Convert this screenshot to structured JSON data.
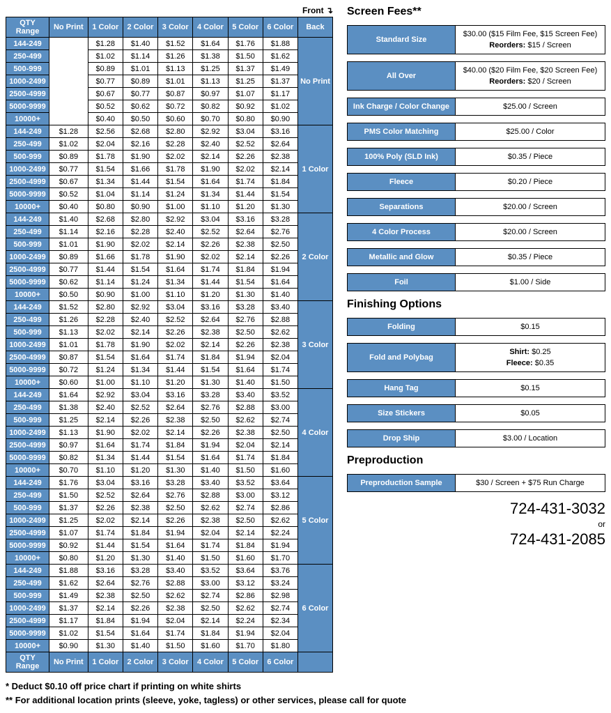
{
  "colors": {
    "header_bg": "#5b8fc2",
    "header_fg": "#ffffff",
    "border": "#000000",
    "background": "#ffffff",
    "text": "#000000"
  },
  "labels": {
    "front": "Front",
    "back": "Back"
  },
  "table": {
    "columns": [
      "QTY Range",
      "No Print",
      "1 Color",
      "2 Color",
      "3 Color",
      "4 Color",
      "5 Color",
      "6 Color"
    ],
    "qty_ranges": [
      "144-249",
      "250-499",
      "500-999",
      "1000-2499",
      "2500-4999",
      "5000-9999",
      "10000+"
    ],
    "back_labels": [
      "No Print",
      "1 Color",
      "2 Color",
      "3 Color",
      "4 Color",
      "5 Color",
      "6 Color"
    ],
    "groups": [
      {
        "back": "No Print",
        "rows": [
          [
            "",
            "$1.28",
            "$1.40",
            "$1.52",
            "$1.64",
            "$1.76",
            "$1.88"
          ],
          [
            "",
            "$1.02",
            "$1.14",
            "$1.26",
            "$1.38",
            "$1.50",
            "$1.62"
          ],
          [
            "",
            "$0.89",
            "$1.01",
            "$1.13",
            "$1.25",
            "$1.37",
            "$1.49"
          ],
          [
            "",
            "$0.77",
            "$0.89",
            "$1.01",
            "$1.13",
            "$1.25",
            "$1.37"
          ],
          [
            "",
            "$0.67",
            "$0.77",
            "$0.87",
            "$0.97",
            "$1.07",
            "$1.17"
          ],
          [
            "",
            "$0.52",
            "$0.62",
            "$0.72",
            "$0.82",
            "$0.92",
            "$1.02"
          ],
          [
            "",
            "$0.40",
            "$0.50",
            "$0.60",
            "$0.70",
            "$0.80",
            "$0.90"
          ]
        ],
        "noprint_rowspan": true
      },
      {
        "back": "1 Color",
        "rows": [
          [
            "$1.28",
            "$2.56",
            "$2.68",
            "$2.80",
            "$2.92",
            "$3.04",
            "$3.16"
          ],
          [
            "$1.02",
            "$2.04",
            "$2.16",
            "$2.28",
            "$2.40",
            "$2.52",
            "$2.64"
          ],
          [
            "$0.89",
            "$1.78",
            "$1.90",
            "$2.02",
            "$2.14",
            "$2.26",
            "$2.38"
          ],
          [
            "$0.77",
            "$1.54",
            "$1.66",
            "$1.78",
            "$1.90",
            "$2.02",
            "$2.14"
          ],
          [
            "$0.67",
            "$1.34",
            "$1.44",
            "$1.54",
            "$1.64",
            "$1.74",
            "$1.84"
          ],
          [
            "$0.52",
            "$1.04",
            "$1.14",
            "$1.24",
            "$1.34",
            "$1.44",
            "$1.54"
          ],
          [
            "$0.40",
            "$0.80",
            "$0.90",
            "$1.00",
            "$1.10",
            "$1.20",
            "$1.30"
          ]
        ]
      },
      {
        "back": "2 Color",
        "rows": [
          [
            "$1.40",
            "$2.68",
            "$2.80",
            "$2.92",
            "$3.04",
            "$3.16",
            "$3.28"
          ],
          [
            "$1.14",
            "$2.16",
            "$2.28",
            "$2.40",
            "$2.52",
            "$2.64",
            "$2.76"
          ],
          [
            "$1.01",
            "$1.90",
            "$2.02",
            "$2.14",
            "$2.26",
            "$2.38",
            "$2.50"
          ],
          [
            "$0.89",
            "$1.66",
            "$1.78",
            "$1.90",
            "$2.02",
            "$2.14",
            "$2.26"
          ],
          [
            "$0.77",
            "$1.44",
            "$1.54",
            "$1.64",
            "$1.74",
            "$1.84",
            "$1.94"
          ],
          [
            "$0.62",
            "$1.14",
            "$1.24",
            "$1.34",
            "$1.44",
            "$1.54",
            "$1.64"
          ],
          [
            "$0.50",
            "$0.90",
            "$1.00",
            "$1.10",
            "$1.20",
            "$1.30",
            "$1.40"
          ]
        ]
      },
      {
        "back": "3 Color",
        "rows": [
          [
            "$1.52",
            "$2.80",
            "$2.92",
            "$3.04",
            "$3.16",
            "$3.28",
            "$3.40"
          ],
          [
            "$1.26",
            "$2.28",
            "$2.40",
            "$2.52",
            "$2.64",
            "$2.76",
            "$2.88"
          ],
          [
            "$1.13",
            "$2.02",
            "$2.14",
            "$2.26",
            "$2.38",
            "$2.50",
            "$2.62"
          ],
          [
            "$1.01",
            "$1.78",
            "$1.90",
            "$2.02",
            "$2.14",
            "$2.26",
            "$2.38"
          ],
          [
            "$0.87",
            "$1.54",
            "$1.64",
            "$1.74",
            "$1.84",
            "$1.94",
            "$2.04"
          ],
          [
            "$0.72",
            "$1.24",
            "$1.34",
            "$1.44",
            "$1.54",
            "$1.64",
            "$1.74"
          ],
          [
            "$0.60",
            "$1.00",
            "$1.10",
            "$1.20",
            "$1.30",
            "$1.40",
            "$1.50"
          ]
        ]
      },
      {
        "back": "4 Color",
        "rows": [
          [
            "$1.64",
            "$2.92",
            "$3.04",
            "$3.16",
            "$3.28",
            "$3.40",
            "$3.52"
          ],
          [
            "$1.38",
            "$2.40",
            "$2.52",
            "$2.64",
            "$2.76",
            "$2.88",
            "$3.00"
          ],
          [
            "$1.25",
            "$2.14",
            "$2.26",
            "$2.38",
            "$2.50",
            "$2.62",
            "$2.74"
          ],
          [
            "$1.13",
            "$1.90",
            "$2.02",
            "$2.14",
            "$2.26",
            "$2.38",
            "$2.50"
          ],
          [
            "$0.97",
            "$1.64",
            "$1.74",
            "$1.84",
            "$1.94",
            "$2.04",
            "$2.14"
          ],
          [
            "$0.82",
            "$1.34",
            "$1.44",
            "$1.54",
            "$1.64",
            "$1.74",
            "$1.84"
          ],
          [
            "$0.70",
            "$1.10",
            "$1.20",
            "$1.30",
            "$1.40",
            "$1.50",
            "$1.60"
          ]
        ]
      },
      {
        "back": "5 Color",
        "rows": [
          [
            "$1.76",
            "$3.04",
            "$3.16",
            "$3.28",
            "$3.40",
            "$3.52",
            "$3.64"
          ],
          [
            "$1.50",
            "$2.52",
            "$2.64",
            "$2.76",
            "$2.88",
            "$3.00",
            "$3.12"
          ],
          [
            "$1.37",
            "$2.26",
            "$2.38",
            "$2.50",
            "$2.62",
            "$2.74",
            "$2.86"
          ],
          [
            "$1.25",
            "$2.02",
            "$2.14",
            "$2.26",
            "$2.38",
            "$2.50",
            "$2.62"
          ],
          [
            "$1.07",
            "$1.74",
            "$1.84",
            "$1.94",
            "$2.04",
            "$2.14",
            "$2.24"
          ],
          [
            "$0.92",
            "$1.44",
            "$1.54",
            "$1.64",
            "$1.74",
            "$1.84",
            "$1.94"
          ],
          [
            "$0.80",
            "$1.20",
            "$1.30",
            "$1.40",
            "$1.50",
            "$1.60",
            "$1.70"
          ]
        ]
      },
      {
        "back": "6 Color",
        "rows": [
          [
            "$1.88",
            "$3.16",
            "$3.28",
            "$3.40",
            "$3.52",
            "$3.64",
            "$3.76"
          ],
          [
            "$1.62",
            "$2.64",
            "$2.76",
            "$2.88",
            "$3.00",
            "$3.12",
            "$3.24"
          ],
          [
            "$1.49",
            "$2.38",
            "$2.50",
            "$2.62",
            "$2.74",
            "$2.86",
            "$2.98"
          ],
          [
            "$1.37",
            "$2.14",
            "$2.26",
            "$2.38",
            "$2.50",
            "$2.62",
            "$2.74"
          ],
          [
            "$1.17",
            "$1.84",
            "$1.94",
            "$2.04",
            "$2.14",
            "$2.24",
            "$2.34"
          ],
          [
            "$1.02",
            "$1.54",
            "$1.64",
            "$1.74",
            "$1.84",
            "$1.94",
            "$2.04"
          ],
          [
            "$0.90",
            "$1.30",
            "$1.40",
            "$1.50",
            "$1.60",
            "$1.70",
            "$1.80"
          ]
        ]
      }
    ]
  },
  "footnotes": [
    "* Deduct $0.10 off price chart if printing on white shirts",
    "** For additional location prints (sleeve, yoke, tagless) or other services, please call for quote"
  ],
  "sections": {
    "screen_fees": {
      "title": "Screen Fees**",
      "rows": [
        {
          "label": "Standard Size",
          "lines": [
            {
              "text": "$30.00 ($15 Film Fee, $15 Screen Fee)"
            },
            {
              "bold": "Reorders:",
              "text": " $15 / Screen"
            }
          ]
        },
        {
          "label": "All Over",
          "lines": [
            {
              "text": "$40.00 ($20 Film Fee, $20 Screen Fee)"
            },
            {
              "bold": "Reorders:",
              "text": " $20 / Screen"
            }
          ]
        },
        {
          "label": "Ink Charge / Color Change",
          "lines": [
            {
              "text": "$25.00 / Screen"
            }
          ]
        },
        {
          "label": "PMS Color Matching",
          "lines": [
            {
              "text": "$25.00 / Color"
            }
          ]
        },
        {
          "label": "100% Poly (SLD Ink)",
          "lines": [
            {
              "text": "$0.35 / Piece"
            }
          ]
        },
        {
          "label": "Fleece",
          "lines": [
            {
              "text": "$0.20 / Piece"
            }
          ]
        },
        {
          "label": "Separations",
          "lines": [
            {
              "text": "$20.00 / Screen"
            }
          ]
        },
        {
          "label": "4 Color Process",
          "lines": [
            {
              "text": "$20.00 / Screen"
            }
          ]
        },
        {
          "label": "Metallic and Glow",
          "lines": [
            {
              "text": "$0.35 / Piece"
            }
          ]
        },
        {
          "label": "Foil",
          "lines": [
            {
              "text": "$1.00 / Side"
            }
          ]
        }
      ]
    },
    "finishing": {
      "title": "Finishing Options",
      "rows": [
        {
          "label": "Folding",
          "lines": [
            {
              "text": "$0.15"
            }
          ]
        },
        {
          "label": "Fold and Polybag",
          "lines": [
            {
              "bold": "Shirt:",
              "text": " $0.25"
            },
            {
              "bold": "Fleece:",
              "text": " $0.35"
            }
          ]
        },
        {
          "label": "Hang Tag",
          "lines": [
            {
              "text": "$0.15"
            }
          ]
        },
        {
          "label": "Size Stickers",
          "lines": [
            {
              "text": "$0.05"
            }
          ]
        },
        {
          "label": "Drop Ship",
          "lines": [
            {
              "text": "$3.00 / Location"
            }
          ]
        }
      ]
    },
    "preproduction": {
      "title": "Preproduction",
      "rows": [
        {
          "label": "Preproduction Sample",
          "lines": [
            {
              "text": "$30 / Screen + $75 Run Charge"
            }
          ]
        }
      ]
    }
  },
  "phone": {
    "num1": "724-431-3032",
    "or": "or",
    "num2": "724-431-2085"
  }
}
